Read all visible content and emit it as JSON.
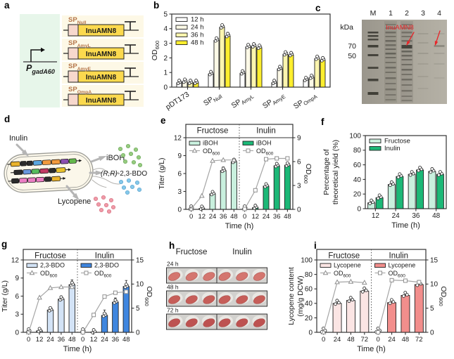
{
  "figure": {
    "background": "#ffffff",
    "panel_letters": {
      "a": "a",
      "b": "b",
      "c": "c",
      "d": "d",
      "e": "e",
      "f": "f",
      "g": "g",
      "h": "h",
      "i": "i"
    }
  },
  "panel_a": {
    "promoter": {
      "base": "P",
      "sub": "gadA60"
    },
    "gene_label": "InuAMN8",
    "signal_peptides": [
      {
        "base": "SP",
        "sub": "Null"
      },
      {
        "base": "SP",
        "sub": "AmyL"
      },
      {
        "base": "SP",
        "sub": "AmyE"
      },
      {
        "base": "SP",
        "sub": "OmpA"
      }
    ],
    "colors": {
      "promoter_bg": "#e7f6ea",
      "row_bg": "#fdf8e6",
      "sp_box": "#f7d8cd",
      "gene_box": "#fbd94e",
      "sp_label": "#b5764a"
    }
  },
  "panel_c": {
    "lane_labels": [
      "M",
      "1",
      "2",
      "3",
      "4"
    ],
    "unit_label": "kDa",
    "marker_labels": [
      "70",
      "50"
    ],
    "band_annotation": "InuAMN8",
    "annotation_color": "#e8262a"
  },
  "panel_d": {
    "substrate_label": "Inulin",
    "product_labels": [
      "iBOH",
      "(R,R)-2,3-BDO",
      "Lycopene"
    ],
    "dot_colors": {
      "iboh": "#97cb7f",
      "bdo": "#85c8ea",
      "lycopene": "#f09aa8"
    }
  },
  "panel_h": {
    "column_headers": [
      "Fructose",
      "Inulin"
    ],
    "row_labels": [
      "24 h",
      "48 h",
      "72 h"
    ],
    "pellet_colors": [
      "#d4766f",
      "#c65e59",
      "#bd5251"
    ]
  },
  "chart_data": [
    {
      "panel": "b",
      "type": "bar",
      "ylabel": [
        {
          "base": "OD",
          "sub": "600"
        }
      ],
      "ylim": [
        0,
        5
      ],
      "yticks": [
        0,
        1,
        2,
        3,
        4,
        5
      ],
      "grid": false,
      "legend_position": "top-left",
      "categories": [
        {
          "base": "pDT173",
          "sub": ""
        },
        {
          "base": "SP",
          "sub": "Null"
        },
        {
          "base": "SP",
          "sub": "AmyL"
        },
        {
          "base": "SP",
          "sub": "AmyE"
        },
        {
          "base": "SP",
          "sub": "OmpA"
        }
      ],
      "series": [
        {
          "name": "12 h",
          "color": "#ffffff",
          "values": [
            0.3,
            0.9,
            0.95,
            0.3,
            0.5
          ],
          "errors": [
            0.04,
            0.06,
            0.06,
            0.04,
            0.05
          ]
        },
        {
          "name": "24 h",
          "color": "#fcf9e6",
          "values": [
            0.38,
            3.2,
            2.75,
            1.25,
            0.65
          ],
          "errors": [
            0.05,
            0.15,
            0.1,
            0.12,
            0.08
          ]
        },
        {
          "name": "36 h",
          "color": "#fbf5ae",
          "values": [
            0.3,
            4.1,
            2.8,
            2.25,
            1.95
          ],
          "errors": [
            0.04,
            0.2,
            0.1,
            0.15,
            0.1
          ]
        },
        {
          "name": "48 h",
          "color": "#fdee2e",
          "values": [
            0.3,
            3.5,
            2.7,
            2.2,
            1.85
          ],
          "errors": [
            0.04,
            0.25,
            0.1,
            0.08,
            0.15
          ]
        }
      ]
    },
    {
      "panel": "e",
      "type": "facet_bar_line",
      "ylabel": [
        "Titer (g/L)"
      ],
      "xlabel": "Time (h)",
      "od_label": {
        "base": "OD",
        "sub": "600"
      },
      "ylim": [
        0,
        12
      ],
      "yticks": [
        0,
        3,
        6,
        9,
        12
      ],
      "y2lim": [
        0,
        9
      ],
      "y2ticks": [
        0,
        3,
        6,
        9
      ],
      "x": [
        "0",
        "12",
        "24",
        "36",
        "48"
      ],
      "facets": [
        {
          "name": "Fructose",
          "bar_label": "iBOH",
          "bar_color": "#c9f0de",
          "marker": "triangle",
          "bars": [
            0,
            0.15,
            2.6,
            6.5,
            8.0
          ],
          "errors": [
            0,
            0.05,
            0.2,
            0.6,
            0.5
          ],
          "od": [
            0.05,
            1.7,
            6.1,
            6.2,
            6.2
          ]
        },
        {
          "name": "Inulin",
          "bar_label": "iBOH",
          "bar_color": "#1cb877",
          "marker": "square",
          "bars": [
            0,
            0.3,
            3.9,
            7.3,
            7.4
          ],
          "errors": [
            0,
            0.05,
            0.15,
            0.5,
            0.3
          ],
          "od": [
            0.05,
            2.4,
            6.3,
            6.4,
            6.4
          ]
        }
      ]
    },
    {
      "panel": "f",
      "type": "bar",
      "ylabel": [
        "Percentage of",
        "theoretical yield (%)"
      ],
      "xlabel": "Time (h)",
      "ylim": [
        0,
        100
      ],
      "yticks": [
        0,
        20,
        40,
        60,
        80,
        100
      ],
      "grid": false,
      "legend_position": "top-left",
      "categories": [
        {
          "base": "12",
          "sub": ""
        },
        {
          "base": "24",
          "sub": ""
        },
        {
          "base": "36",
          "sub": ""
        },
        {
          "base": "48",
          "sub": ""
        }
      ],
      "series": [
        {
          "name": "Fructose",
          "color": "#c9f0de",
          "values": [
            8,
            33,
            47,
            51
          ],
          "errors": [
            4,
            2,
            4,
            3
          ]
        },
        {
          "name": "Inulin",
          "color": "#1cb877",
          "values": [
            15,
            44,
            53,
            47
          ],
          "errors": [
            2,
            2,
            2,
            2
          ]
        }
      ]
    },
    {
      "panel": "g",
      "type": "facet_bar_line",
      "ylabel": [
        "Titer (g/L)"
      ],
      "xlabel": "Time (h)",
      "od_label": {
        "base": "OD",
        "sub": "600"
      },
      "ylim": [
        0,
        12
      ],
      "yticks": [
        0,
        3,
        6,
        9,
        12
      ],
      "y2lim": [
        0,
        15
      ],
      "y2ticks": [
        0,
        5,
        10,
        15
      ],
      "x": [
        "0",
        "12",
        "24",
        "36",
        "48"
      ],
      "facets": [
        {
          "name": "Fructose",
          "bar_label": "2,3-BDO",
          "bar_color": "#d3e3f6",
          "marker": "triangle",
          "bars": [
            0,
            0.25,
            3.7,
            5.5,
            7.9
          ],
          "errors": [
            0,
            0.1,
            0.5,
            0.5,
            0.8
          ],
          "od": [
            0,
            7.2,
            9.2,
            9.4,
            9.4
          ]
        },
        {
          "name": "Inulin",
          "bar_label": "2,3-BDO",
          "bar_color": "#3f86df",
          "marker": "square",
          "bars": [
            0,
            0.05,
            2.8,
            5.0,
            7.6
          ],
          "errors": [
            0,
            0.02,
            0.9,
            0.7,
            1.0
          ],
          "od": [
            0,
            3.6,
            7.4,
            8.2,
            8.4
          ]
        }
      ]
    },
    {
      "panel": "i",
      "type": "facet_bar_line",
      "ylabel": [
        "Lycopene content",
        "(mg/g DCW)"
      ],
      "xlabel": "Time (h)",
      "od_label": {
        "base": "OD",
        "sub": "600"
      },
      "ylim": [
        0,
        100
      ],
      "yticks": [
        0,
        20,
        40,
        60,
        80,
        100
      ],
      "y2lim": [
        0,
        15
      ],
      "y2ticks": [
        0,
        5,
        10,
        15
      ],
      "x": [
        "0",
        "24",
        "48",
        "72"
      ],
      "facets": [
        {
          "name": "Fructose",
          "bar_label": "Lycopene",
          "bar_color": "#fbe5e4",
          "marker": "triangle",
          "bars": [
            0,
            40,
            44,
            57
          ],
          "errors": [
            0,
            3,
            3,
            4
          ],
          "od": [
            0,
            10.4,
            10.5,
            10.3
          ]
        },
        {
          "name": "Inulin",
          "bar_label": "Lycopene",
          "bar_color": "#f28e8c",
          "marker": "square",
          "bars": [
            0,
            41,
            51,
            66
          ],
          "errors": [
            0,
            2,
            2,
            3
          ],
          "od": [
            0,
            10.8,
            10.7,
            10.4
          ]
        }
      ]
    }
  ]
}
